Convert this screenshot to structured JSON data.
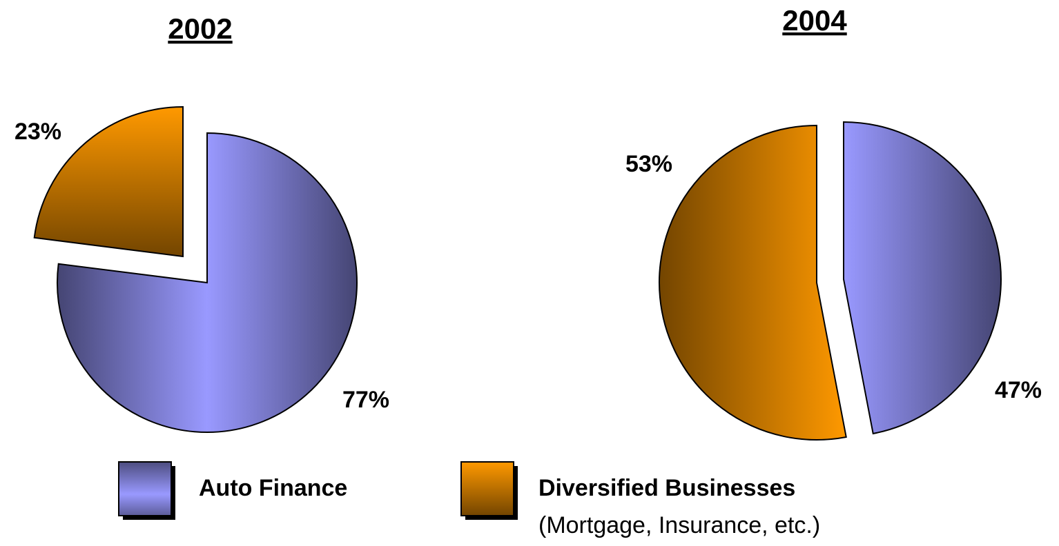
{
  "chart_data": [
    {
      "type": "pie",
      "title": "2002",
      "categories": [
        "Auto Finance",
        "Diversified Businesses"
      ],
      "values": [
        77,
        23
      ],
      "value_labels": [
        "77%",
        "23%"
      ],
      "colors": [
        "#9999ff",
        "#ff9900"
      ]
    },
    {
      "type": "pie",
      "title": "2004",
      "categories": [
        "Auto Finance",
        "Diversified Businesses"
      ],
      "values": [
        47,
        53
      ],
      "value_labels": [
        "47%",
        "53%"
      ],
      "colors": [
        "#9999ff",
        "#ff9900"
      ]
    }
  ],
  "legend_note": "(Mortgage, Insurance, etc.)"
}
